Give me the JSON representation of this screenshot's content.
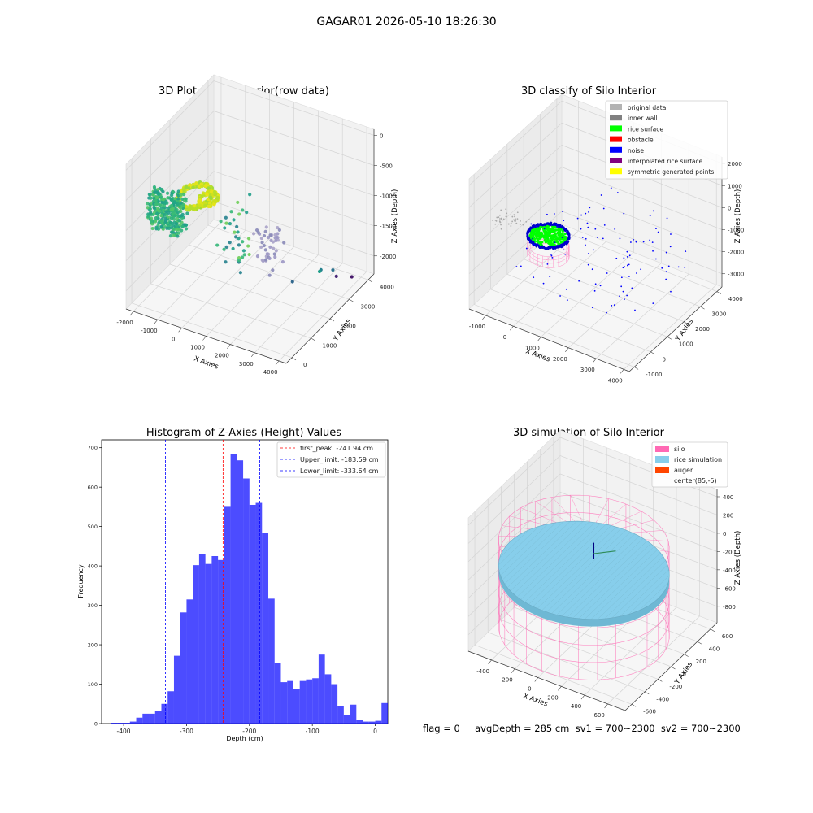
{
  "figure": {
    "suptitle": "GAGAR01 2026-05-10 18:26:30",
    "footer": "flag = 0     avgDepth = 285 cm  sv1 = 700~2300  sv2 = 700~2300"
  },
  "chart_data": [
    {
      "id": "raw",
      "type": "scatter",
      "projection": "3d",
      "title": "3D Plot of Silo Interior(row data)",
      "xlabel": "X Axies",
      "ylabel": "Y Axies",
      "zlabel": "Z Axies (Depth)",
      "xticks": [
        -2000,
        -1000,
        0,
        1000,
        2000,
        3000,
        4000
      ],
      "yticks": [
        0,
        1000,
        2000,
        3000,
        4000
      ],
      "zticks": [
        0,
        -500,
        -1000,
        -1500,
        -2000
      ],
      "xlim": [
        -2300,
        4300
      ],
      "ylim": [
        -300,
        4300
      ],
      "zlim": [
        -2300,
        100
      ],
      "grid": true,
      "colormap": "viridis",
      "series": [
        {
          "kind": "ring",
          "cx": 150,
          "cy": 200,
          "r": 550,
          "z": -260,
          "n": 320,
          "spread": 70,
          "colors": [
            "#cde11d",
            "#e7e419",
            "#b5de2b",
            "#9bd93c"
          ]
        },
        {
          "kind": "ring",
          "cx": 750,
          "cy": 150,
          "r": 300,
          "z": -200,
          "n": 120,
          "spread": 50,
          "colors": [
            "#cde11d",
            "#e7e419",
            "#b5de2b"
          ]
        },
        {
          "kind": "cloud",
          "x": [
            -1600,
            -200
          ],
          "y": [
            -200,
            300
          ],
          "z": [
            -900,
            -300
          ],
          "n": 300,
          "colors": [
            "#2db27d",
            "#3bbb75",
            "#21a685",
            "#52c569",
            "#1f9e89"
          ]
        },
        {
          "kind": "cloud",
          "x": [
            200,
            1100
          ],
          "y": [
            1200,
            2100
          ],
          "z": [
            -1900,
            -700
          ],
          "n": 35,
          "colors": [
            "#35b779",
            "#1f9e89",
            "#26828e",
            "#6ece58"
          ]
        },
        {
          "kind": "cloud",
          "x": [
            1600,
            2500
          ],
          "y": [
            1200,
            2000
          ],
          "z": [
            -1600,
            -1000
          ],
          "n": 45,
          "colors": [
            "#a8a2c8",
            "#8a89b8",
            "#9c97c4"
          ]
        },
        {
          "kind": "points",
          "x": [
            2200,
            2900,
            3000,
            3000,
            3300,
            3700
          ],
          "y": [
            2700,
            3300,
            3800,
            3100,
            3600,
            3900
          ],
          "z": [
            -2200,
            -2100,
            -2250,
            -2050,
            -2250,
            -2300
          ],
          "colors": [
            "#31688e",
            "#26828e",
            "#2c728e",
            "#1f9e89",
            "#482878",
            "#481a6c"
          ]
        }
      ]
    },
    {
      "id": "classify",
      "type": "scatter",
      "projection": "3d",
      "title": "3D classify of Silo Interior",
      "xlabel": "X Axies",
      "ylabel": "Y Axies",
      "zlabel": "Z Axies (Depth)",
      "xticks": [
        -1000,
        0,
        1000,
        2000,
        3000,
        4000
      ],
      "yticks": [
        -1000,
        0,
        1000,
        2000,
        3000,
        4000
      ],
      "zticks": [
        2000,
        1000,
        0,
        -1000,
        -2000,
        -3000
      ],
      "xlim": [
        -1600,
        4200
      ],
      "ylim": [
        -1300,
        4300
      ],
      "zlim": [
        -3600,
        2300
      ],
      "grid": true,
      "legend": {
        "placement": "upper-right",
        "entries": [
          {
            "label": "original data",
            "color": "#b3b3b3"
          },
          {
            "label": "inner wall",
            "color": "#808080"
          },
          {
            "label": "rice surface",
            "color": "#00ff00"
          },
          {
            "label": "obstacle",
            "color": "#ff0000"
          },
          {
            "label": "noise",
            "color": "#0000ff"
          },
          {
            "label": "interpolated rice surface",
            "color": "#800080"
          },
          {
            "label": "symmetric generated points",
            "color": "#ffff00"
          }
        ]
      }
    },
    {
      "id": "hist",
      "type": "bar",
      "title": "Histogram of Z-Axies (Height) Values",
      "xlabel": "Depth (cm)",
      "ylabel": "Frequency",
      "xlim": [
        -435,
        20
      ],
      "ylim": [
        0,
        720
      ],
      "xticks": [
        -400,
        -300,
        -200,
        -100,
        0
      ],
      "yticks": [
        0,
        100,
        200,
        300,
        400,
        500,
        600,
        700
      ],
      "bar_color": "#0000ff",
      "bin_width": 10,
      "bin_start": -420,
      "values": [
        2,
        2,
        2,
        5,
        15,
        25,
        25,
        32,
        50,
        82,
        172,
        282,
        315,
        402,
        430,
        405,
        425,
        415,
        550,
        683,
        668,
        622,
        555,
        560,
        483,
        317,
        153,
        105,
        108,
        88,
        108,
        112,
        115,
        175,
        125,
        100,
        45,
        22,
        48,
        10,
        5,
        5,
        7,
        52
      ],
      "vlines": [
        {
          "x": -241.94,
          "color": "#ff0000",
          "label": "first_peak: -241.94 cm"
        },
        {
          "x": -183.59,
          "color": "#0000ff",
          "label": "Upper_limit: -183.59 cm"
        },
        {
          "x": -333.64,
          "color": "#0000ff",
          "label": "Lower_limit: -333.64 cm"
        }
      ],
      "legend": {
        "placement": "upper-right"
      }
    },
    {
      "id": "sim",
      "type": "scatter",
      "projection": "3d",
      "title": "3D simulation of Silo Interior",
      "xlabel": "X Axies",
      "ylabel": "Y Axies",
      "zlabel": "Z Axies (Depth)",
      "xticks": [
        -400,
        -200,
        0,
        200,
        400,
        600
      ],
      "yticks": [
        -600,
        -400,
        -200,
        0,
        200,
        400,
        600
      ],
      "zticks": [
        400,
        200,
        0,
        -200,
        -400,
        -600,
        -800
      ],
      "xlim": [
        -600,
        750
      ],
      "ylim": [
        -700,
        700
      ],
      "zlim": [
        -980,
        480
      ],
      "grid": true,
      "silo": {
        "radius": 640,
        "top": 0,
        "bottom": -950,
        "color": "#ff69b4"
      },
      "rice": {
        "radius": 640,
        "z": -285,
        "color": "#87ceeb"
      },
      "legend": {
        "placement": "upper-right",
        "entries": [
          {
            "label": "silo",
            "color": "#ff69b4"
          },
          {
            "label": "rice simulation",
            "color": "#87ceeb"
          },
          {
            "label": "auger",
            "color": "#ff4500"
          },
          {
            "label": "center(85,-5)",
            "color": ""
          }
        ]
      }
    }
  ]
}
